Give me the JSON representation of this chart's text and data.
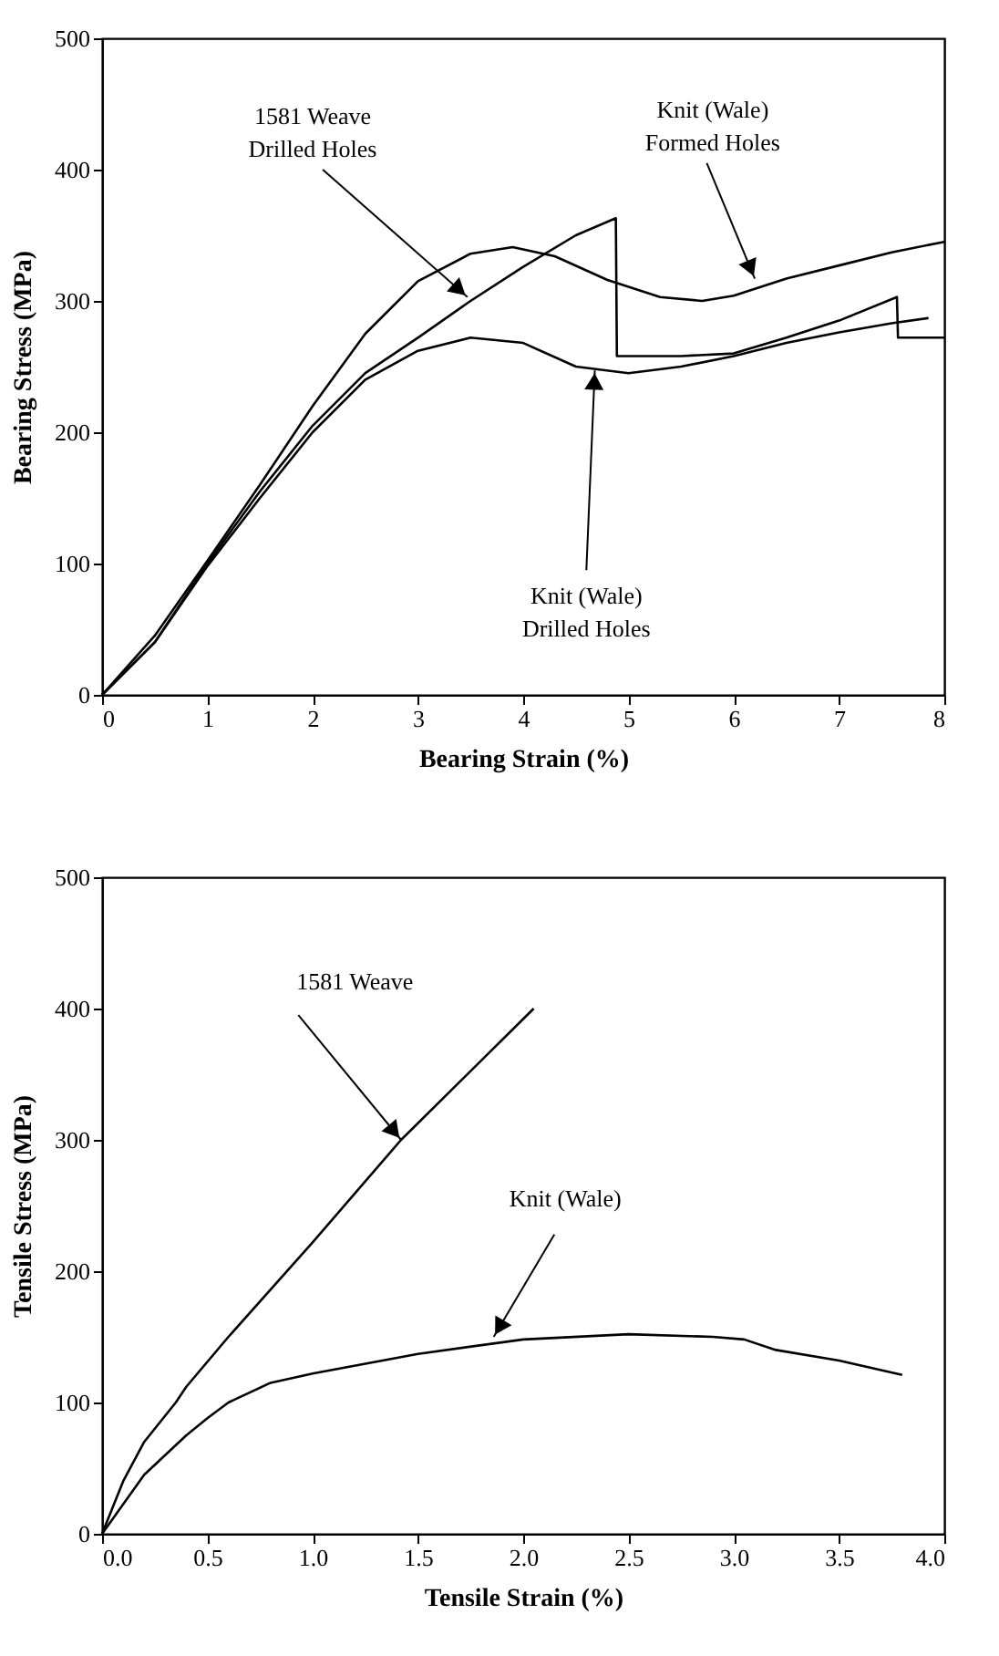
{
  "chart_data": [
    {
      "type": "line",
      "xlabel": "Bearing Strain (%)",
      "ylabel": "Bearing Stress (MPa)",
      "xlim": [
        0,
        8
      ],
      "ylim": [
        0,
        500
      ],
      "xticks": [
        0,
        1,
        2,
        3,
        4,
        5,
        6,
        7,
        8
      ],
      "yticks": [
        0,
        100,
        200,
        300,
        400,
        500
      ],
      "grid": false,
      "line_style": "solid",
      "marker": "none",
      "series": [
        {
          "color": "#000000",
          "x": [
            0,
            0.5,
            1,
            1.5,
            2,
            2.5,
            3,
            3.5,
            4,
            4.5,
            4.88,
            4.89,
            5.5,
            6,
            6.5,
            7,
            7.55,
            7.56,
            8
          ],
          "values": [
            0,
            40,
            100,
            155,
            205,
            245,
            272,
            300,
            326,
            350,
            363,
            258,
            258,
            260,
            272,
            285,
            303,
            272,
            272
          ]
        },
        {
          "color": "#000000",
          "x": [
            0,
            0.5,
            1,
            1.5,
            2,
            2.5,
            3,
            3.5,
            3.9,
            4.3,
            4.8,
            5.3,
            5.7,
            6,
            6.5,
            7,
            7.5,
            8
          ],
          "values": [
            0,
            45,
            102,
            160,
            220,
            275,
            315,
            336,
            341,
            334,
            316,
            303,
            300,
            304,
            317,
            327,
            337,
            345
          ]
        },
        {
          "color": "#000000",
          "x": [
            0,
            0.5,
            1,
            1.5,
            2,
            2.5,
            3,
            3.5,
            4,
            4.5,
            5,
            5.5,
            6,
            6.5,
            7,
            7.5,
            7.85
          ],
          "values": [
            0,
            40,
            98,
            150,
            200,
            240,
            262,
            272,
            268,
            250,
            245,
            250,
            258,
            268,
            276,
            283,
            287
          ]
        }
      ],
      "annotations": [
        {
          "text": "1581 Weave\nDrilled Holes",
          "x": 3.47,
          "y": 303
        },
        {
          "text": "Knit (Wale)\nFormed Holes",
          "x": 6.2,
          "y": 317
        },
        {
          "text": "Knit (Wale)\nDrilled Holes",
          "x": 4.68,
          "y": 247
        }
      ]
    },
    {
      "type": "line",
      "xlabel": "Tensile Strain (%)",
      "ylabel": "Tensile Stress (MPa)",
      "xlim": [
        0,
        4
      ],
      "ylim": [
        0,
        500
      ],
      "xticks": [
        {
          "value": 0,
          "label": "0.0"
        },
        0.5,
        {
          "value": 1,
          "label": "1.0"
        },
        1.5,
        {
          "value": 2,
          "label": "2.0"
        },
        2.5,
        {
          "value": 3,
          "label": "3.0"
        },
        3.5,
        {
          "value": 4,
          "label": "4.0"
        }
      ],
      "yticks": [
        0,
        100,
        200,
        300,
        400,
        500
      ],
      "grid": false,
      "line_style": "solid",
      "marker": "none",
      "series": [
        {
          "color": "#000000",
          "x": [
            0,
            0.1,
            0.2,
            0.35,
            0.4,
            0.6,
            1,
            1.42,
            2.05
          ],
          "values": [
            0,
            40,
            70,
            100,
            112,
            150,
            222,
            300,
            400
          ]
        },
        {
          "color": "#000000",
          "x": [
            0,
            0.2,
            0.4,
            0.5,
            0.6,
            0.8,
            1,
            1.5,
            2,
            2.5,
            2.9,
            3.05,
            3.2,
            3.5,
            3.8
          ],
          "values": [
            0,
            45,
            75,
            88,
            100,
            115,
            122,
            137,
            148,
            152,
            150,
            148,
            140,
            132,
            121
          ]
        }
      ],
      "annotations": [
        {
          "text": "1581 Weave",
          "x": 1.42,
          "y": 300
        },
        {
          "text": "Knit (Wale)",
          "x": 1.86,
          "y": 150
        }
      ]
    }
  ]
}
